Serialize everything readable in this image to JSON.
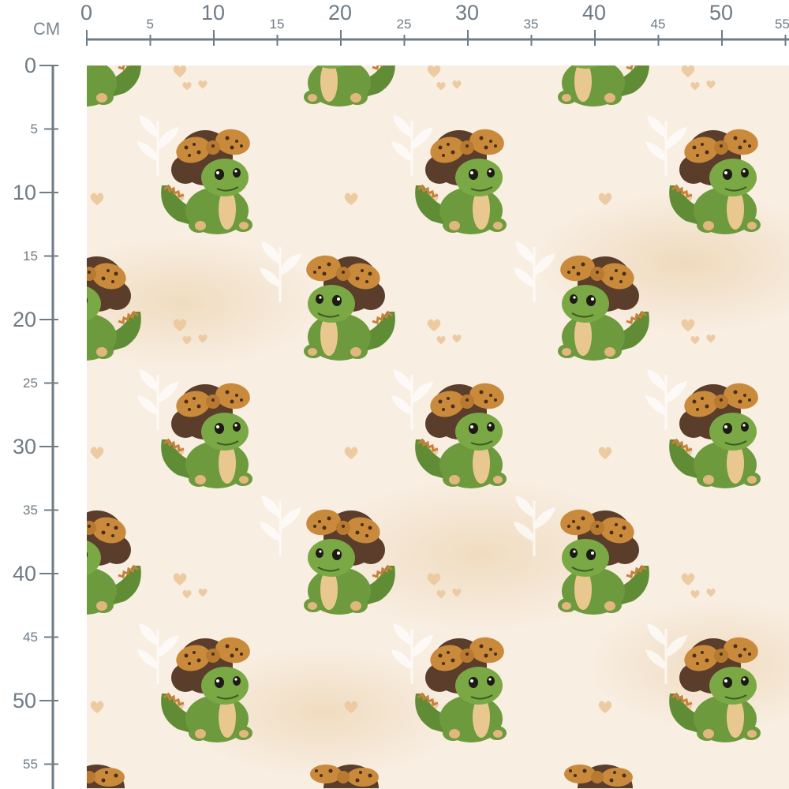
{
  "ruler": {
    "unit": "CM",
    "horizontal_labels": [
      "0",
      "5",
      "10",
      "15",
      "20",
      "25",
      "30",
      "35",
      "40",
      "45",
      "50",
      "55"
    ],
    "vertical_labels": [
      "0",
      "5",
      "10",
      "15",
      "20",
      "25",
      "30",
      "35",
      "40",
      "45",
      "50",
      "55"
    ],
    "color": "#6f7b86"
  },
  "fabric": {
    "pattern": "baby green dinosaur with leopard-print bow and brown curly hair, beige watercolor background with hearts and leaves",
    "colors": {
      "background": "#f8eee2",
      "dino": "#6e9a3e",
      "bow": "#c98a3c",
      "hair": "#5a3d2b",
      "heart": "#eccba2"
    }
  }
}
